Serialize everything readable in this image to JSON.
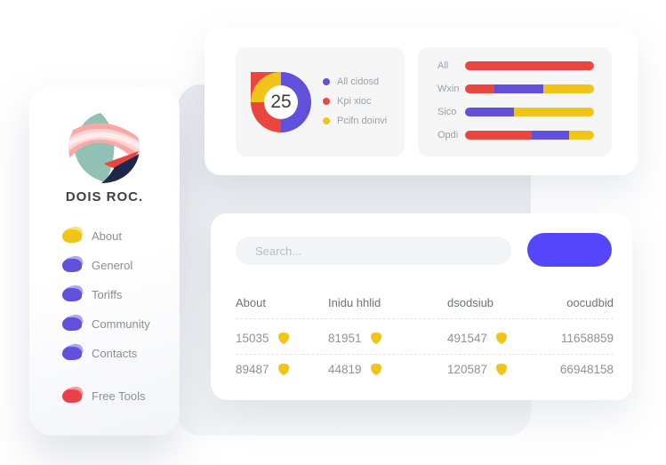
{
  "colors": {
    "red": "#EA453E",
    "purple": "#6150DB",
    "yellow": "#F0C419",
    "button_blue": "#5546FB",
    "menu_red": "#E8414B"
  },
  "sidebar": {
    "title": "DOIS ROC.",
    "items": [
      {
        "label": "About",
        "color": "#F0C419"
      },
      {
        "label": "Generol",
        "color": "#6150DB"
      },
      {
        "label": "Toriffs",
        "color": "#6150DB"
      },
      {
        "label": "Community",
        "color": "#6150DB"
      },
      {
        "label": "Contacts",
        "color": "#6150DB"
      }
    ],
    "footer_item": {
      "label": "Free Tools",
      "color": "#E8414B"
    }
  },
  "chart_data": [
    {
      "type": "pie",
      "variant": "donut",
      "center_value": "25",
      "legend_position": "right",
      "series": [
        {
          "name": "All cidosd",
          "color": "#6150DB",
          "pct": 50
        },
        {
          "name": "Kpi xioc",
          "color": "#EA453E",
          "pct": 25
        },
        {
          "name": "Pcifn doinvi",
          "color": "#F0C419",
          "pct": 25
        }
      ]
    },
    {
      "type": "bar",
      "orientation": "horizontal",
      "stacked": true,
      "categories": [
        "All",
        "Wxin",
        "Sico",
        "Opdi"
      ],
      "rows": [
        [
          {
            "color": "#EA453E",
            "pct": 100
          }
        ],
        [
          {
            "color": "#EA453E",
            "pct": 23
          },
          {
            "color": "#6150DB",
            "pct": 38
          },
          {
            "color": "#F0C419",
            "pct": 39
          }
        ],
        [
          {
            "color": "#6150DB",
            "pct": 38
          },
          {
            "color": "#F0C419",
            "pct": 62
          }
        ],
        [
          {
            "color": "#EA453E",
            "pct": 52
          },
          {
            "color": "#6150DB",
            "pct": 29
          },
          {
            "color": "#F0C419",
            "pct": 19
          }
        ]
      ]
    }
  ],
  "bottom_card": {
    "search": {
      "placeholder": "Search..."
    },
    "button": {
      "label": ""
    },
    "table": {
      "headers": [
        "About",
        "Inidu hhlid",
        "dsodsiub",
        "oocudbid"
      ],
      "rows": [
        {
          "about": "15035",
          "inidu_hhlid": "81951",
          "dsodsiub": "491547",
          "oocudbid": "11658859"
        },
        {
          "about": "89487",
          "inidu_hhlid": "44819",
          "dsodsiub": "120587",
          "oocudbid": "66948158"
        }
      ]
    }
  }
}
